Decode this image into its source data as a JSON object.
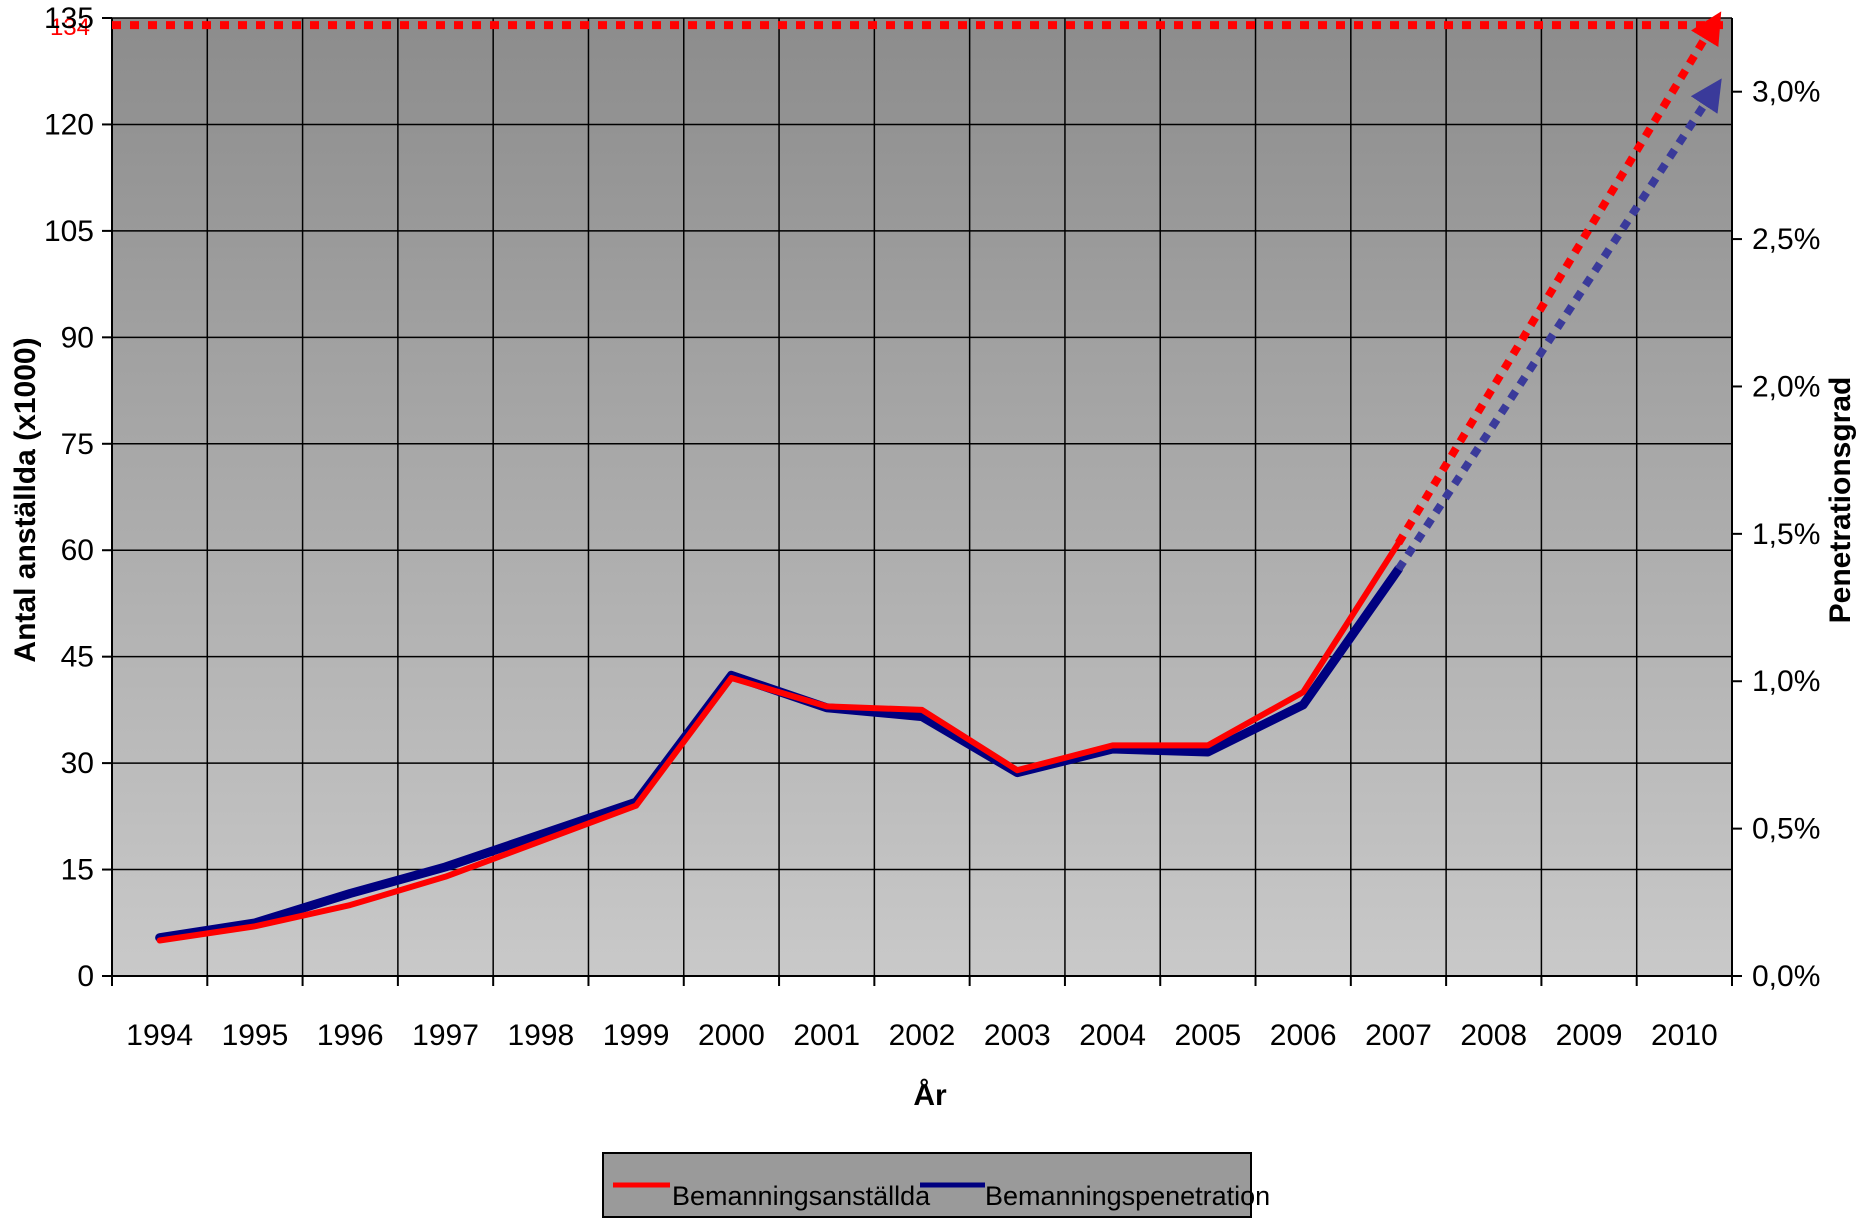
{
  "chart_data": {
    "type": "line",
    "x": [
      1994,
      1995,
      1996,
      1997,
      1998,
      1999,
      2000,
      2001,
      2002,
      2003,
      2004,
      2005,
      2006,
      2007,
      2008,
      2009,
      2010
    ],
    "x_tick_labels": [
      "1994",
      "1995",
      "1996",
      "1997",
      "1998",
      "1999",
      "2000",
      "2001",
      "2002",
      "2003",
      "2004",
      "2005",
      "2006",
      "2007",
      "2008",
      "2009",
      "2010"
    ],
    "xlabel": "År",
    "ylabel_left": "Antal anställda (x1000)",
    "ylabel_right": "Penetrationsgrad",
    "ylim_left": [
      0,
      135
    ],
    "left_ticks": [
      "0",
      "15",
      "30",
      "45",
      "60",
      "75",
      "90",
      "105",
      "120",
      "135"
    ],
    "ylim_right": [
      0,
      3.25
    ],
    "right_ticks": [
      "0,0%",
      "0,5%",
      "1,0%",
      "1,5%",
      "2,0%",
      "2,5%",
      "3,0%"
    ],
    "reference_line": {
      "value": 134,
      "label": "134",
      "axis": "left",
      "style": "dotted",
      "color": "#ff0000"
    },
    "series": [
      {
        "name": "Bemanningsanställda",
        "axis": "left",
        "color": "#ff0000",
        "x": [
          1994,
          1995,
          1996,
          1997,
          1998,
          1999,
          2000,
          2001,
          2002,
          2003,
          2004,
          2005,
          2006,
          2007
        ],
        "values": [
          5,
          7,
          10,
          14,
          19,
          24,
          42,
          38,
          37.5,
          29,
          32.5,
          32.5,
          40,
          61
        ],
        "projection": {
          "x": [
            2007,
            2010.3
          ],
          "values": [
            61,
            134
          ],
          "style": "dotted"
        }
      },
      {
        "name": "Bemanningspenetration",
        "axis": "right",
        "color": "#000080",
        "x": [
          1994,
          1995,
          1996,
          1997,
          1998,
          1999,
          2000,
          2001,
          2002,
          2003,
          2004,
          2005,
          2006,
          2007
        ],
        "values": [
          0.13,
          0.18,
          0.28,
          0.37,
          0.48,
          0.59,
          1.02,
          0.91,
          0.88,
          0.69,
          0.77,
          0.76,
          0.92,
          1.38
        ],
        "projection": {
          "x": [
            2007,
            2010.3
          ],
          "values": [
            1.38,
            3.0
          ],
          "style": "dotted",
          "projection_color": "#3a3a9a"
        }
      }
    ],
    "legend": {
      "placement": "bottom",
      "entries": [
        "Bemanningsanställda",
        "Bemanningspenetration"
      ]
    },
    "grid": true,
    "plot_background": "gradient gray #8c8c8c to #c8c8c8"
  }
}
